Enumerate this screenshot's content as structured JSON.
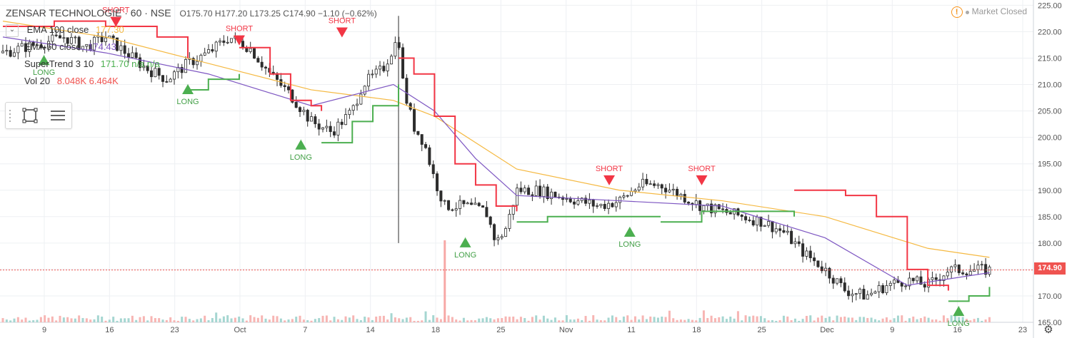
{
  "header": {
    "symbol": "ZENSAR TECHNOLOGIE",
    "interval": "60",
    "exchange": "NSE",
    "ohlc": "O175.70 H177.20 L173.25 C174.90 −1.10 (−0.62%)",
    "market_status": "Market Closed"
  },
  "indicators": [
    {
      "name": "EMA 100 close",
      "value": "177.30",
      "color": "#f5b942"
    },
    {
      "name": "EMA 50 close",
      "value": "174.43",
      "color": "#7e57c2"
    },
    {
      "name": "SuperTrend 3 10",
      "value": "171.70 n/a n/a",
      "color": "#4caf50"
    },
    {
      "name": "Vol 20",
      "value": "8.048K 6.464K",
      "color": "#ef5350"
    }
  ],
  "last_price": "174.90",
  "colors": {
    "up": "#26a69a",
    "down": "#ef5350",
    "st_up": "#4caf50",
    "st_down": "#f23645",
    "ema100": "#f5b942",
    "ema50": "#7e57c2",
    "grid": "#eef0f3",
    "axis": "#777777"
  },
  "chart_data": {
    "type": "candlestick",
    "ylim": [
      165,
      226
    ],
    "y_ticks": [
      165,
      170,
      175,
      180,
      185,
      190,
      195,
      200,
      205,
      210,
      215,
      220,
      225
    ],
    "y_tick_labels": [
      "165.00",
      "170.00",
      "175.00",
      "180.00",
      "185.00",
      "190.00",
      "195.00",
      "200.00",
      "205.00",
      "210.00",
      "215.00",
      "220.00",
      "225.00"
    ],
    "x_ticks": [
      "9",
      "16",
      "23",
      "Oct",
      "7",
      "14",
      "18",
      "25",
      "Nov",
      "11",
      "18",
      "25",
      "Dec",
      "9",
      "16",
      "23"
    ],
    "signals": [
      {
        "label": "LONG",
        "index": 0.04,
        "price": 214.5
      },
      {
        "label": "SHORT",
        "index": 0.11,
        "price": 222
      },
      {
        "label": "LONG",
        "index": 0.18,
        "price": 209
      },
      {
        "label": "SHORT",
        "index": 0.23,
        "price": 218.5
      },
      {
        "label": "LONG",
        "index": 0.29,
        "price": 198.5
      },
      {
        "label": "SHORT",
        "index": 0.33,
        "price": 220
      },
      {
        "label": "LONG",
        "index": 0.45,
        "price": 180
      },
      {
        "label": "SHORT",
        "index": 0.59,
        "price": 192
      },
      {
        "label": "LONG",
        "index": 0.61,
        "price": 182
      },
      {
        "label": "SHORT",
        "index": 0.68,
        "price": 192
      },
      {
        "label": "LONG",
        "index": 0.93,
        "price": 167
      }
    ],
    "close_path": [
      [
        0.0,
        216
      ],
      [
        0.02,
        217
      ],
      [
        0.04,
        218
      ],
      [
        0.06,
        219
      ],
      [
        0.08,
        217
      ],
      [
        0.1,
        219
      ],
      [
        0.12,
        216
      ],
      [
        0.14,
        213
      ],
      [
        0.16,
        211
      ],
      [
        0.18,
        214
      ],
      [
        0.2,
        216
      ],
      [
        0.22,
        219
      ],
      [
        0.24,
        217
      ],
      [
        0.26,
        212
      ],
      [
        0.28,
        208
      ],
      [
        0.3,
        203
      ],
      [
        0.32,
        201
      ],
      [
        0.34,
        205
      ],
      [
        0.35,
        210
      ],
      [
        0.37,
        213
      ],
      [
        0.385,
        219
      ],
      [
        0.39,
        209
      ],
      [
        0.4,
        202
      ],
      [
        0.41,
        199
      ],
      [
        0.42,
        192
      ],
      [
        0.43,
        187
      ],
      [
        0.45,
        187
      ],
      [
        0.47,
        186
      ],
      [
        0.48,
        180
      ],
      [
        0.49,
        183
      ],
      [
        0.5,
        190
      ],
      [
        0.52,
        190
      ],
      [
        0.54,
        189
      ],
      [
        0.56,
        188
      ],
      [
        0.58,
        187
      ],
      [
        0.6,
        188
      ],
      [
        0.62,
        191
      ],
      [
        0.64,
        191
      ],
      [
        0.66,
        189
      ],
      [
        0.68,
        187
      ],
      [
        0.7,
        186
      ],
      [
        0.72,
        185
      ],
      [
        0.74,
        184
      ],
      [
        0.76,
        182
      ],
      [
        0.78,
        178
      ],
      [
        0.8,
        175
      ],
      [
        0.82,
        171
      ],
      [
        0.84,
        170
      ],
      [
        0.86,
        172
      ],
      [
        0.88,
        173
      ],
      [
        0.9,
        172
      ],
      [
        0.92,
        174.9
      ]
    ],
    "ema100_path": [
      [
        0.0,
        222
      ],
      [
        0.1,
        219
      ],
      [
        0.2,
        214
      ],
      [
        0.3,
        209
      ],
      [
        0.38,
        207
      ],
      [
        0.42,
        204
      ],
      [
        0.5,
        194
      ],
      [
        0.6,
        190
      ],
      [
        0.7,
        188
      ],
      [
        0.8,
        185
      ],
      [
        0.9,
        179
      ],
      [
        0.96,
        177.3
      ]
    ],
    "ema50_path": [
      [
        0.0,
        219
      ],
      [
        0.1,
        216
      ],
      [
        0.2,
        212
      ],
      [
        0.3,
        206
      ],
      [
        0.38,
        210
      ],
      [
        0.42,
        205
      ],
      [
        0.46,
        196
      ],
      [
        0.5,
        189
      ],
      [
        0.6,
        188
      ],
      [
        0.7,
        187
      ],
      [
        0.8,
        181
      ],
      [
        0.88,
        172
      ],
      [
        0.96,
        174.4
      ]
    ],
    "supertrend_segments": [
      {
        "trend": "down",
        "points": [
          [
            0.0,
            221
          ],
          [
            0.05,
            222
          ],
          [
            0.1,
            221
          ],
          [
            0.15,
            219
          ],
          [
            0.18,
            215
          ]
        ]
      },
      {
        "trend": "up",
        "points": [
          [
            0.18,
            209
          ],
          [
            0.2,
            211
          ],
          [
            0.23,
            212
          ]
        ]
      },
      {
        "trend": "down",
        "points": [
          [
            0.23,
            217
          ],
          [
            0.26,
            212
          ],
          [
            0.28,
            207
          ],
          [
            0.3,
            206
          ],
          [
            0.31,
            205
          ]
        ]
      },
      {
        "trend": "up",
        "points": [
          [
            0.31,
            199
          ],
          [
            0.34,
            203
          ],
          [
            0.36,
            206
          ],
          [
            0.385,
            210
          ]
        ]
      },
      {
        "trend": "down",
        "points": [
          [
            0.385,
            215
          ],
          [
            0.4,
            212
          ],
          [
            0.42,
            204
          ],
          [
            0.44,
            195
          ],
          [
            0.46,
            191
          ],
          [
            0.48,
            187
          ],
          [
            0.5,
            186
          ]
        ]
      },
      {
        "trend": "up",
        "points": [
          [
            0.5,
            184
          ],
          [
            0.53,
            185
          ],
          [
            0.58,
            185
          ],
          [
            0.64,
            185
          ]
        ]
      },
      {
        "trend": "down",
        "points": [
          [
            0.64,
            191
          ]
        ]
      },
      {
        "trend": "up",
        "points": [
          [
            0.64,
            184
          ],
          [
            0.68,
            186
          ],
          [
            0.74,
            186
          ],
          [
            0.77,
            185
          ]
        ]
      },
      {
        "trend": "down",
        "points": [
          [
            0.77,
            190
          ],
          [
            0.82,
            189
          ],
          [
            0.85,
            185
          ],
          [
            0.88,
            175
          ],
          [
            0.9,
            172
          ],
          [
            0.92,
            171
          ]
        ]
      },
      {
        "trend": "up",
        "points": [
          [
            0.92,
            169
          ],
          [
            0.94,
            170
          ],
          [
            0.96,
            171.7
          ]
        ]
      }
    ],
    "volume_spike": {
      "index": 0.43,
      "value": 1.0
    }
  }
}
